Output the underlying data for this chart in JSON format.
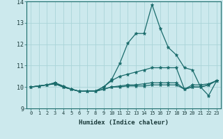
{
  "xlabel": "Humidex (Indice chaleur)",
  "xlim": [
    -0.5,
    23.5
  ],
  "ylim": [
    9,
    14
  ],
  "yticks": [
    9,
    10,
    11,
    12,
    13,
    14
  ],
  "xticks": [
    0,
    1,
    2,
    3,
    4,
    5,
    6,
    7,
    8,
    9,
    10,
    11,
    12,
    13,
    14,
    15,
    16,
    17,
    18,
    19,
    20,
    21,
    22,
    23
  ],
  "bg_color": "#cce9ed",
  "line_color": "#1a6b6b",
  "grid_color": "#aad4d8",
  "lines": [
    [
      10.0,
      10.05,
      10.1,
      10.2,
      10.05,
      9.9,
      9.8,
      9.82,
      9.82,
      10.0,
      10.35,
      11.1,
      12.05,
      12.5,
      12.5,
      13.85,
      12.75,
      11.85,
      11.5,
      10.9,
      10.8,
      10.0,
      9.6,
      10.3
    ],
    [
      10.0,
      10.05,
      10.1,
      10.2,
      10.0,
      9.9,
      9.8,
      9.8,
      9.8,
      10.0,
      10.3,
      10.5,
      10.6,
      10.7,
      10.8,
      10.9,
      10.9,
      10.9,
      10.9,
      9.9,
      10.1,
      10.1,
      10.15,
      10.3
    ],
    [
      10.0,
      10.05,
      10.1,
      10.15,
      10.0,
      9.9,
      9.8,
      9.8,
      9.8,
      9.9,
      10.0,
      10.05,
      10.1,
      10.1,
      10.15,
      10.2,
      10.2,
      10.2,
      10.2,
      9.9,
      10.0,
      10.0,
      10.1,
      10.3
    ],
    [
      10.0,
      10.05,
      10.1,
      10.15,
      10.0,
      9.9,
      9.8,
      9.8,
      9.8,
      9.9,
      10.0,
      10.0,
      10.05,
      10.05,
      10.05,
      10.1,
      10.1,
      10.1,
      10.1,
      9.9,
      10.0,
      10.0,
      10.1,
      10.3
    ]
  ]
}
